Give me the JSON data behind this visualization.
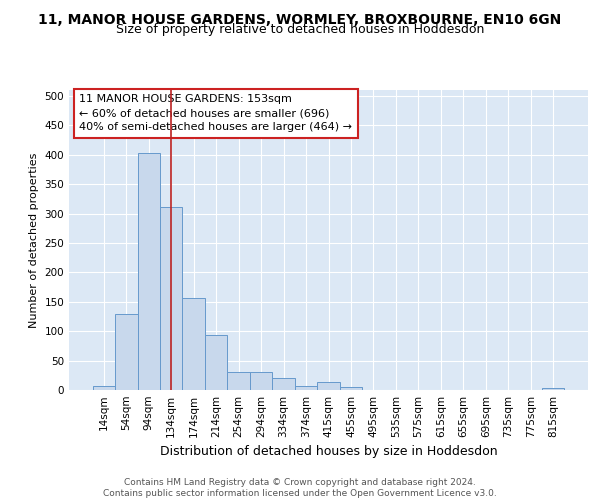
{
  "title": "11, MANOR HOUSE GARDENS, WORMLEY, BROXBOURNE, EN10 6GN",
  "subtitle": "Size of property relative to detached houses in Hoddesdon",
  "xlabel": "Distribution of detached houses by size in Hoddesdon",
  "ylabel": "Number of detached properties",
  "bar_labels": [
    "14sqm",
    "54sqm",
    "94sqm",
    "134sqm",
    "174sqm",
    "214sqm",
    "254sqm",
    "294sqm",
    "334sqm",
    "374sqm",
    "415sqm",
    "455sqm",
    "495sqm",
    "535sqm",
    "575sqm",
    "615sqm",
    "655sqm",
    "695sqm",
    "735sqm",
    "775sqm",
    "815sqm"
  ],
  "bar_heights": [
    6,
    130,
    403,
    311,
    157,
    93,
    30,
    30,
    21,
    7,
    13,
    5,
    0,
    0,
    0,
    0,
    0,
    0,
    0,
    0,
    4
  ],
  "bar_color": "#c8d8ec",
  "bar_edge_color": "#6699cc",
  "background_color": "#dce8f5",
  "grid_color": "#ffffff",
  "vline_x": 3.0,
  "vline_color": "#bb2222",
  "annotation_line1": "11 MANOR HOUSE GARDENS: 153sqm",
  "annotation_line2": "← 60% of detached houses are smaller (696)",
  "annotation_line3": "40% of semi-detached houses are larger (464) →",
  "annotation_box_color": "#ffffff",
  "annotation_box_edge": "#cc2222",
  "ylim": [
    0,
    510
  ],
  "yticks": [
    0,
    50,
    100,
    150,
    200,
    250,
    300,
    350,
    400,
    450,
    500
  ],
  "footer_text": "Contains HM Land Registry data © Crown copyright and database right 2024.\nContains public sector information licensed under the Open Government Licence v3.0.",
  "title_fontsize": 10,
  "subtitle_fontsize": 9,
  "xlabel_fontsize": 9,
  "ylabel_fontsize": 8,
  "tick_fontsize": 7.5,
  "annotation_fontsize": 8,
  "footer_fontsize": 6.5
}
